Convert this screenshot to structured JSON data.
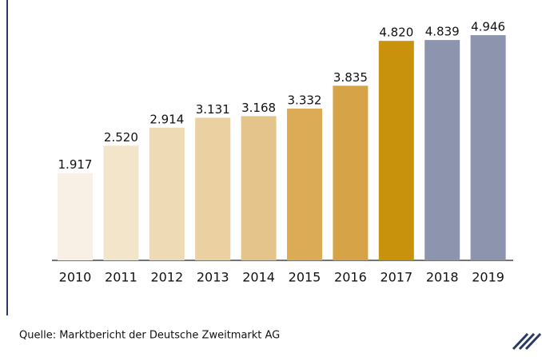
{
  "chart_data": {
    "type": "bar",
    "categories": [
      "2010",
      "2011",
      "2012",
      "2013",
      "2014",
      "2015",
      "2016",
      "2017",
      "2018",
      "2019"
    ],
    "values": [
      1917,
      2520,
      2914,
      3131,
      3168,
      3332,
      3835,
      4820,
      4839,
      4946
    ],
    "value_labels": [
      "1.917",
      "2.520",
      "2.914",
      "3.131",
      "3.168",
      "3.332",
      "3.835",
      "4.820",
      "4.839",
      "4.946"
    ],
    "colors": [
      "#f8efe5",
      "#f3e5c9",
      "#eedbb6",
      "#ebd0a2",
      "#e4c48a",
      "#dcab56",
      "#d7a347",
      "#c9920c",
      "#8d94ae",
      "#8d94ae"
    ],
    "source": "Quelle: Marktbericht der Deutsche Zweitmarkt AG"
  }
}
